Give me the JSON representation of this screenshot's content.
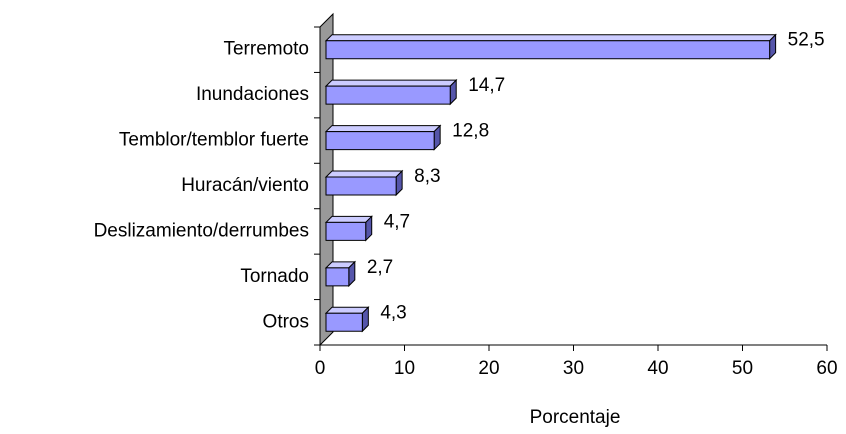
{
  "chart_data": {
    "type": "bar",
    "orientation": "horizontal",
    "x_label": "Porcentaje",
    "categories": [
      "Terremoto",
      "Inundaciones",
      "Temblor/temblor fuerte",
      "Huracán/viento",
      "Deslizamiento/derrumbes",
      "Tornado",
      "Otros"
    ],
    "values": [
      52.5,
      14.7,
      12.8,
      8.3,
      4.7,
      2.7,
      4.3
    ],
    "value_labels": [
      "52,5",
      "14,7",
      "12,8",
      "8,3",
      "4,7",
      "2,7",
      "4,3"
    ],
    "color": "#9999ff",
    "xlim": [
      0,
      60
    ],
    "xticks": [
      0,
      10,
      20,
      30,
      40,
      50,
      60
    ]
  }
}
